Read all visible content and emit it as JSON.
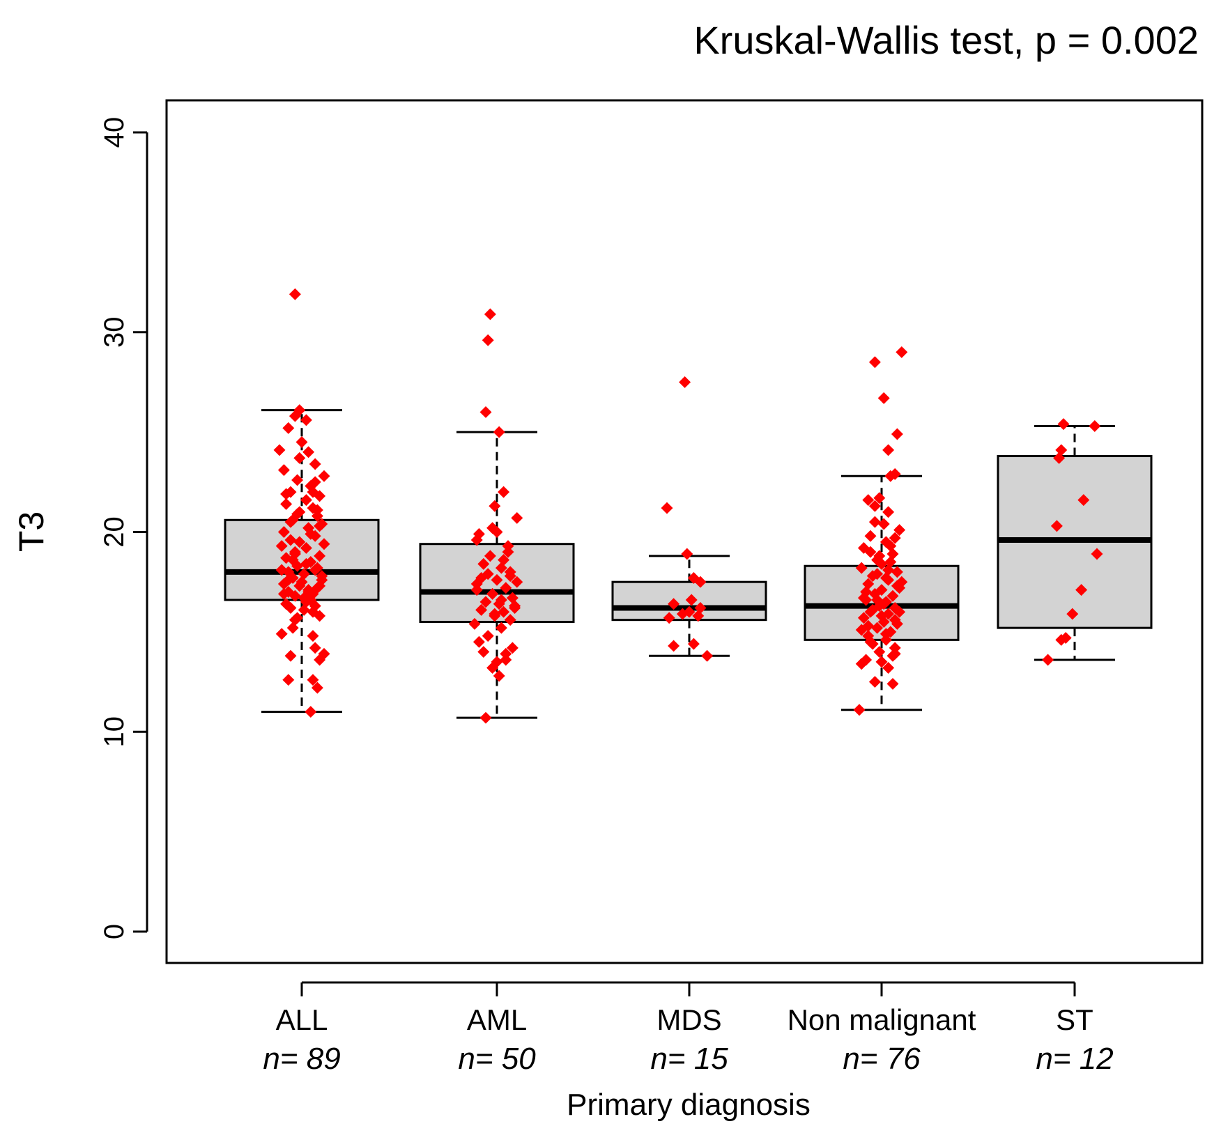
{
  "chart_data": {
    "type": "boxplot",
    "title": "Kruskal-Wallis test, p = 0.002",
    "xlabel": "Primary diagnosis",
    "ylabel": "T3",
    "ylim": [
      0,
      40
    ],
    "yticks": [
      0,
      10,
      20,
      30,
      40
    ],
    "point_color": "#ff0000",
    "box_fill": "#d3d3d3",
    "groups": [
      {
        "name": "ALL",
        "n_label": "n= 89",
        "box": {
          "whisker_low": 11.0,
          "q1": 16.6,
          "median": 18.0,
          "q3": 20.6,
          "whisker_high": 26.1
        },
        "points": [
          [
            -0.03,
            31.9
          ],
          [
            0.04,
            11.0
          ],
          [
            -0.06,
            12.6
          ],
          [
            0.07,
            12.2
          ],
          [
            0.05,
            12.6
          ],
          [
            -0.05,
            13.8
          ],
          [
            0.08,
            13.6
          ],
          [
            0.1,
            13.9
          ],
          [
            0.06,
            14.2
          ],
          [
            -0.09,
            14.9
          ],
          [
            -0.04,
            15.2
          ],
          [
            0.08,
            15.8
          ],
          [
            0.05,
            16.0
          ],
          [
            -0.02,
            15.7
          ],
          [
            -0.07,
            16.4
          ],
          [
            0.02,
            16.5
          ],
          [
            -0.03,
            16.8
          ],
          [
            0.05,
            16.9
          ],
          [
            -0.06,
            17.0
          ],
          [
            0.07,
            17.2
          ],
          [
            -0.01,
            17.3
          ],
          [
            0.03,
            17.1
          ],
          [
            -0.08,
            17.4
          ],
          [
            0.09,
            17.6
          ],
          [
            -0.04,
            17.7
          ],
          [
            0.01,
            17.9
          ],
          [
            -0.06,
            18.0
          ],
          [
            0.06,
            18.1
          ],
          [
            -0.02,
            18.3
          ],
          [
            0.04,
            18.5
          ],
          [
            -0.07,
            18.7
          ],
          [
            0.08,
            18.8
          ],
          [
            -0.03,
            19.0
          ],
          [
            0.02,
            19.2
          ],
          [
            0.1,
            19.4
          ],
          [
            -0.05,
            19.6
          ],
          [
            0.06,
            19.8
          ],
          [
            -0.08,
            20.0
          ],
          [
            0.03,
            20.2
          ],
          [
            0.09,
            20.4
          ],
          [
            -0.04,
            20.6
          ],
          [
            0.07,
            20.8
          ],
          [
            -0.01,
            21.0
          ],
          [
            0.05,
            21.2
          ],
          [
            -0.07,
            21.4
          ],
          [
            0.02,
            21.6
          ],
          [
            0.08,
            21.8
          ],
          [
            -0.05,
            22.0
          ],
          [
            0.04,
            22.3
          ],
          [
            -0.02,
            22.6
          ],
          [
            0.1,
            22.8
          ],
          [
            -0.08,
            23.1
          ],
          [
            0.06,
            23.4
          ],
          [
            -0.01,
            23.7
          ],
          [
            0.03,
            24.0
          ],
          [
            -0.1,
            24.1
          ],
          [
            0.0,
            24.5
          ],
          [
            -0.06,
            25.2
          ],
          [
            0.02,
            25.6
          ],
          [
            -0.03,
            25.8
          ],
          [
            -0.01,
            26.1
          ],
          [
            0.08,
            20.3
          ],
          [
            -0.09,
            19.3
          ],
          [
            0.06,
            16.3
          ],
          [
            -0.03,
            15.6
          ],
          [
            0.07,
            18.2
          ],
          [
            0.0,
            17.5
          ],
          [
            -0.05,
            16.2
          ],
          [
            0.04,
            19.9
          ],
          [
            -0.07,
            21.9
          ],
          [
            0.09,
            17.8
          ],
          [
            0.01,
            16.7
          ],
          [
            -0.02,
            20.9
          ],
          [
            0.05,
            22.0
          ],
          [
            -0.04,
            18.6
          ],
          [
            0.03,
            17.0
          ],
          [
            -0.08,
            16.9
          ],
          [
            0.07,
            21.1
          ],
          [
            0.02,
            18.4
          ],
          [
            -0.06,
            17.6
          ],
          [
            0.04,
            16.6
          ],
          [
            -0.01,
            19.5
          ],
          [
            0.08,
            17.3
          ],
          [
            -0.03,
            18.9
          ],
          [
            0.06,
            22.5
          ],
          [
            -0.05,
            20.5
          ],
          [
            0.01,
            16.1
          ],
          [
            -0.09,
            18.1
          ],
          [
            0.05,
            14.8
          ]
        ]
      },
      {
        "name": "AML",
        "n_label": "n= 50",
        "box": {
          "whisker_low": 10.7,
          "q1": 15.5,
          "median": 17.0,
          "q3": 19.4,
          "whisker_high": 25.0
        },
        "points": [
          [
            -0.03,
            30.9
          ],
          [
            -0.04,
            29.6
          ],
          [
            -0.05,
            26.0
          ],
          [
            0.01,
            25.0
          ],
          [
            0.03,
            22.0
          ],
          [
            -0.01,
            21.3
          ],
          [
            0.09,
            20.7
          ],
          [
            -0.02,
            20.2
          ],
          [
            -0.08,
            19.9
          ],
          [
            -0.09,
            19.6
          ],
          [
            0.05,
            19.0
          ],
          [
            0.03,
            18.6
          ],
          [
            -0.06,
            18.4
          ],
          [
            0.02,
            18.2
          ],
          [
            -0.04,
            17.9
          ],
          [
            0.06,
            17.8
          ],
          [
            0.0,
            17.6
          ],
          [
            -0.09,
            17.4
          ],
          [
            0.04,
            17.2
          ],
          [
            -0.02,
            16.9
          ],
          [
            0.07,
            16.7
          ],
          [
            -0.05,
            16.5
          ],
          [
            0.01,
            16.4
          ],
          [
            0.08,
            16.3
          ],
          [
            -0.07,
            16.1
          ],
          [
            0.03,
            16.0
          ],
          [
            -0.01,
            15.8
          ],
          [
            0.06,
            15.6
          ],
          [
            -0.1,
            15.4
          ],
          [
            0.02,
            15.2
          ],
          [
            -0.04,
            14.8
          ],
          [
            0.07,
            14.2
          ],
          [
            -0.06,
            14.0
          ],
          [
            0.04,
            13.9
          ],
          [
            0.0,
            13.5
          ],
          [
            -0.02,
            13.2
          ],
          [
            0.01,
            12.8
          ],
          [
            -0.05,
            10.7
          ],
          [
            -0.08,
            14.5
          ],
          [
            0.05,
            19.3
          ],
          [
            0.09,
            17.5
          ],
          [
            -0.03,
            18.8
          ],
          [
            0.02,
            16.6
          ],
          [
            0.06,
            18.0
          ],
          [
            -0.07,
            17.7
          ],
          [
            0.0,
            20.0
          ],
          [
            0.08,
            16.2
          ],
          [
            -0.01,
            15.9
          ],
          [
            0.04,
            13.6
          ],
          [
            -0.09,
            17.1
          ]
        ]
      },
      {
        "name": "MDS",
        "n_label": "n= 15",
        "box": {
          "whisker_low": 13.8,
          "q1": 15.6,
          "median": 16.2,
          "q3": 17.5,
          "whisker_high": 18.8
        },
        "points": [
          [
            -0.02,
            27.5
          ],
          [
            -0.1,
            21.2
          ],
          [
            -0.01,
            18.9
          ],
          [
            0.02,
            17.7
          ],
          [
            0.05,
            17.5
          ],
          [
            0.01,
            16.6
          ],
          [
            -0.07,
            16.4
          ],
          [
            0.05,
            16.2
          ],
          [
            0.0,
            16.0
          ],
          [
            -0.09,
            15.7
          ],
          [
            0.04,
            15.8
          ],
          [
            -0.07,
            14.3
          ],
          [
            0.02,
            14.4
          ],
          [
            0.08,
            13.8
          ],
          [
            -0.03,
            15.9
          ]
        ]
      },
      {
        "name": "Non malignant",
        "n_label": "n= 76",
        "box": {
          "whisker_low": 11.1,
          "q1": 14.6,
          "median": 16.3,
          "q3": 18.3,
          "whisker_high": 22.8
        },
        "points": [
          [
            -0.03,
            28.5
          ],
          [
            0.09,
            29.0
          ],
          [
            0.01,
            26.7
          ],
          [
            0.07,
            24.9
          ],
          [
            0.03,
            24.1
          ],
          [
            0.04,
            22.8
          ],
          [
            0.06,
            22.9
          ],
          [
            -0.06,
            21.6
          ],
          [
            -0.01,
            21.7
          ],
          [
            0.03,
            21.0
          ],
          [
            -0.03,
            20.5
          ],
          [
            0.01,
            20.4
          ],
          [
            -0.05,
            19.8
          ],
          [
            0.06,
            19.7
          ],
          [
            0.02,
            19.5
          ],
          [
            -0.08,
            19.2
          ],
          [
            0.05,
            18.9
          ],
          [
            -0.02,
            18.6
          ],
          [
            0.0,
            18.4
          ],
          [
            -0.09,
            18.2
          ],
          [
            0.07,
            18.0
          ],
          [
            -0.04,
            17.8
          ],
          [
            0.03,
            17.6
          ],
          [
            -0.06,
            17.4
          ],
          [
            0.08,
            17.2
          ],
          [
            0.0,
            17.1
          ],
          [
            -0.03,
            16.9
          ],
          [
            0.05,
            16.8
          ],
          [
            -0.07,
            16.6
          ],
          [
            0.02,
            16.5
          ],
          [
            -0.01,
            16.3
          ],
          [
            0.06,
            16.2
          ],
          [
            -0.05,
            16.0
          ],
          [
            0.03,
            15.9
          ],
          [
            -0.08,
            15.7
          ],
          [
            0.01,
            15.5
          ],
          [
            0.07,
            15.4
          ],
          [
            -0.02,
            15.2
          ],
          [
            0.04,
            15.0
          ],
          [
            -0.06,
            14.8
          ],
          [
            0.02,
            14.6
          ],
          [
            -0.04,
            14.4
          ],
          [
            0.06,
            14.2
          ],
          [
            -0.01,
            14.0
          ],
          [
            0.05,
            13.8
          ],
          [
            -0.07,
            13.6
          ],
          [
            0.0,
            13.5
          ],
          [
            -0.09,
            13.4
          ],
          [
            0.03,
            13.2
          ],
          [
            -0.03,
            12.5
          ],
          [
            0.05,
            12.4
          ],
          [
            -0.1,
            11.1
          ],
          [
            0.08,
            20.1
          ],
          [
            -0.05,
            19.0
          ],
          [
            0.04,
            18.5
          ],
          [
            -0.02,
            17.9
          ],
          [
            0.07,
            17.3
          ],
          [
            -0.08,
            16.7
          ],
          [
            0.01,
            16.4
          ],
          [
            -0.04,
            16.1
          ],
          [
            0.06,
            15.6
          ],
          [
            -0.06,
            15.3
          ],
          [
            0.02,
            14.9
          ],
          [
            0.09,
            17.5
          ],
          [
            -0.01,
            18.8
          ],
          [
            0.04,
            19.3
          ],
          [
            -0.03,
            21.3
          ],
          [
            0.0,
            15.8
          ],
          [
            0.08,
            16.0
          ],
          [
            -0.07,
            17.0
          ],
          [
            0.03,
            18.1
          ],
          [
            -0.05,
            14.5
          ],
          [
            0.06,
            13.9
          ],
          [
            -0.02,
            16.6
          ],
          [
            0.02,
            17.7
          ],
          [
            -0.09,
            15.1
          ]
        ]
      },
      {
        "name": "ST",
        "n_label": "n= 12",
        "box": {
          "whisker_low": 13.6,
          "q1": 15.2,
          "median": 19.6,
          "q3": 23.8,
          "whisker_high": 25.3
        },
        "points": [
          [
            -0.05,
            25.4
          ],
          [
            0.09,
            25.3
          ],
          [
            -0.06,
            24.1
          ],
          [
            -0.07,
            23.7
          ],
          [
            0.04,
            21.6
          ],
          [
            -0.08,
            20.3
          ],
          [
            0.1,
            18.9
          ],
          [
            0.03,
            17.1
          ],
          [
            -0.01,
            15.9
          ],
          [
            -0.06,
            14.6
          ],
          [
            -0.04,
            14.7
          ],
          [
            -0.12,
            13.6
          ]
        ]
      }
    ]
  }
}
